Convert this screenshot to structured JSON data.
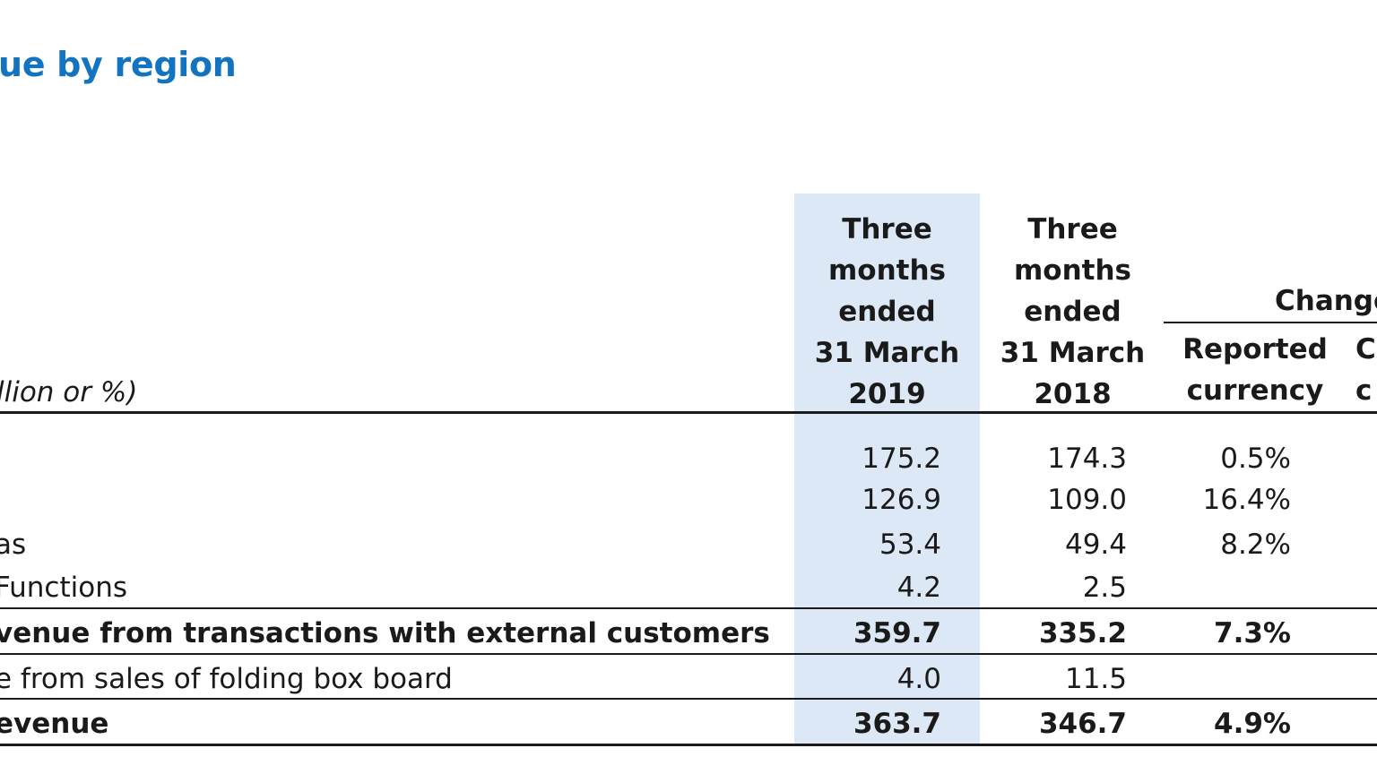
{
  "title": "ue by region",
  "unit_label": "llion or %)",
  "columns": {
    "current": [
      "Three",
      "months",
      "ended",
      "31 March",
      "2019"
    ],
    "prior": [
      "Three",
      "months",
      "ended",
      "31 March",
      "2018"
    ],
    "change_label": "Change",
    "reported": [
      "Reported",
      "currency"
    ],
    "constant": [
      "C",
      "c"
    ]
  },
  "rows": [
    {
      "label": "",
      "current": "175.2",
      "prior": "174.3",
      "change": "0.5%"
    },
    {
      "label": "",
      "current": "126.9",
      "prior": "109.0",
      "change": "16.4%"
    },
    {
      "label": "as",
      "current": "53.4",
      "prior": "49.4",
      "change": "8.2%"
    },
    {
      "label": "Functions",
      "current": "4.2",
      "prior": "2.5",
      "change": ""
    },
    {
      "label": "venue from transactions with external customers",
      "current": "359.7",
      "prior": "335.2",
      "change": "7.3%"
    },
    {
      "label": "e from sales of folding box board",
      "current": "4.0",
      "prior": "11.5",
      "change": ""
    },
    {
      "label": "evenue",
      "current": "363.7",
      "prior": "346.7",
      "change": "4.9%"
    }
  ],
  "colors": {
    "title": "#1273c1",
    "highlight_column": "#dce8f5"
  }
}
